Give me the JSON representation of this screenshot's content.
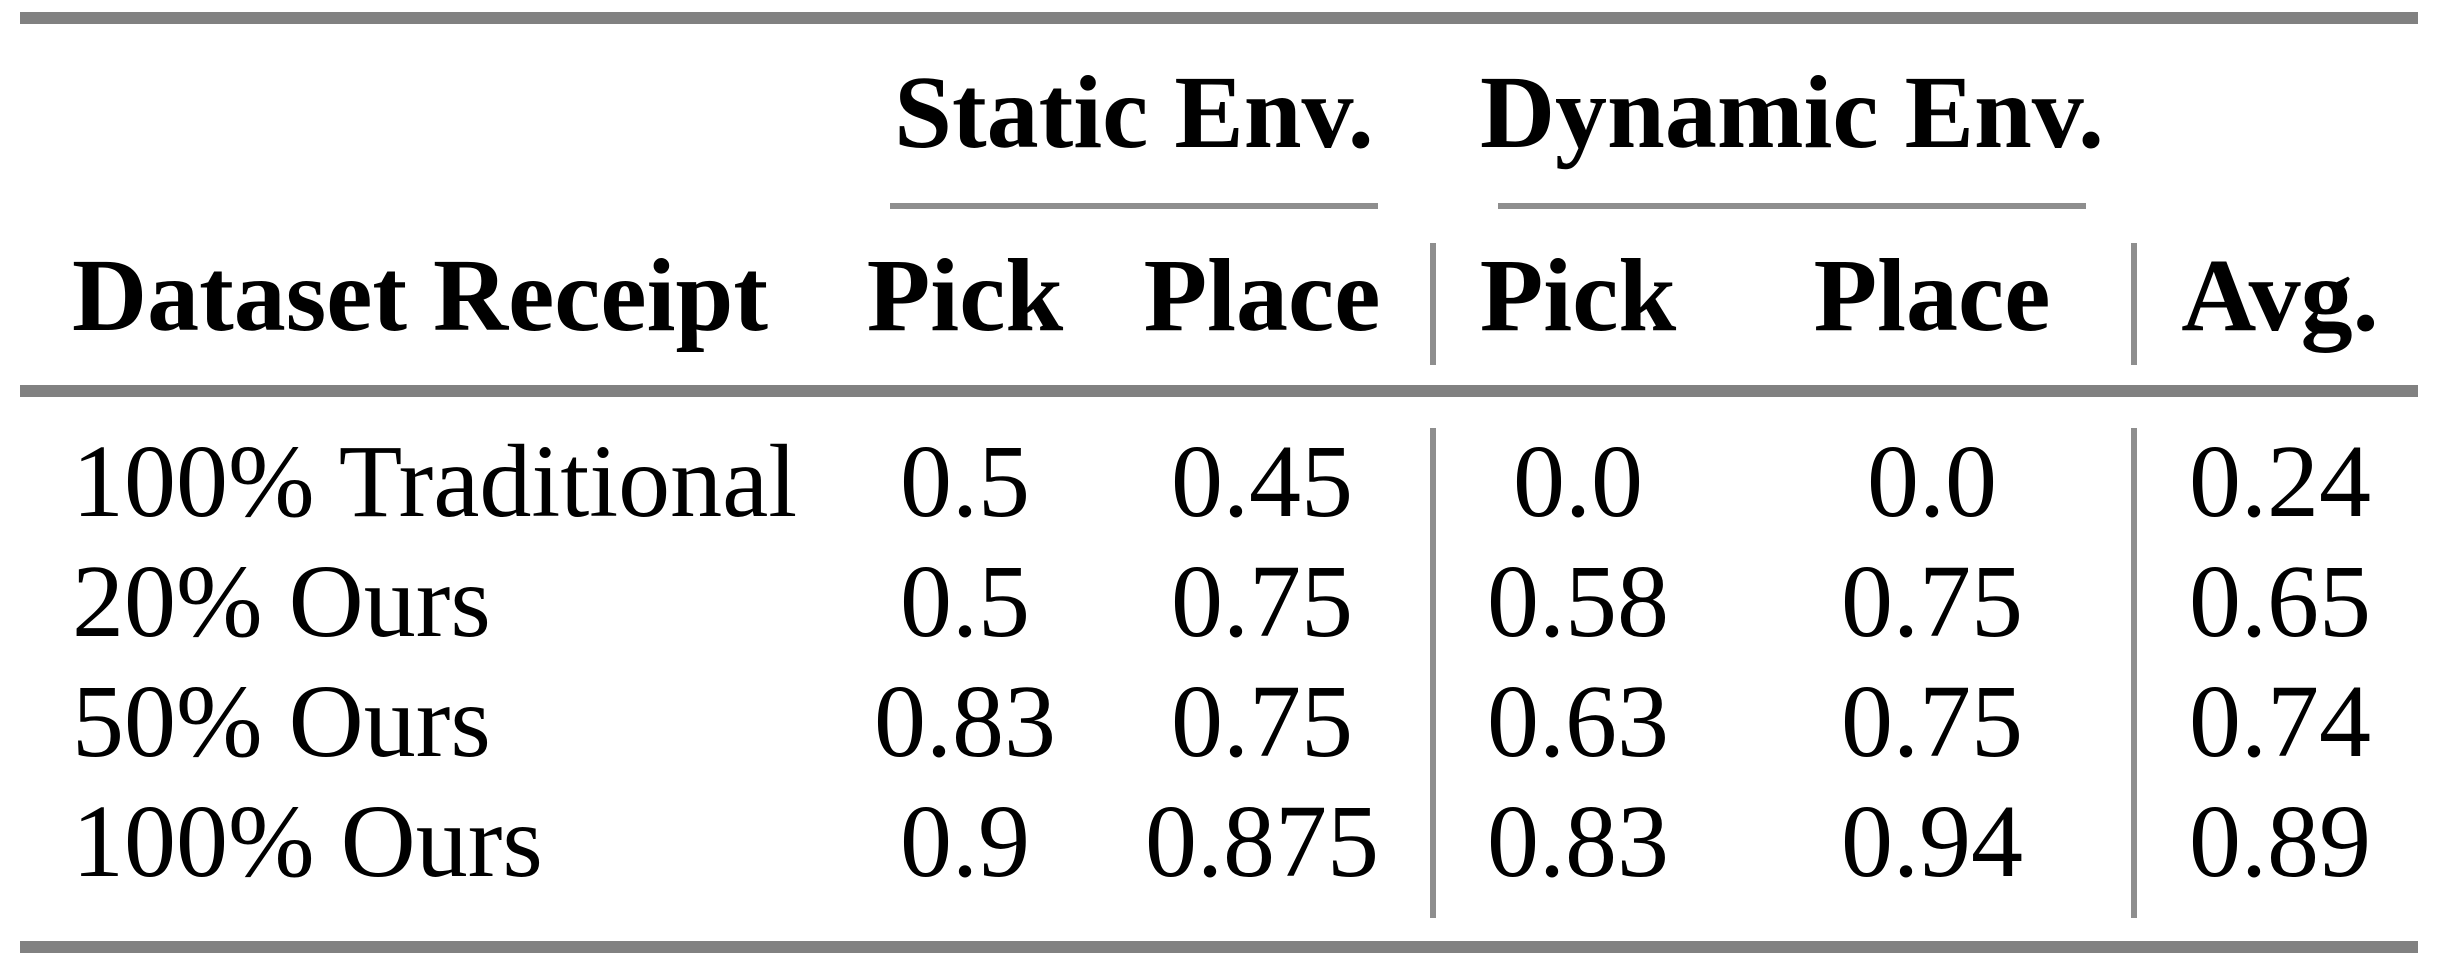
{
  "table": {
    "groups": [
      {
        "label": "Static Env."
      },
      {
        "label": "Dynamic Env."
      }
    ],
    "headers": {
      "dataset": "Dataset Receipt",
      "static_pick": "Pick",
      "static_place": "Place",
      "dynamic_pick": "Pick",
      "dynamic_place": "Place",
      "avg": "Avg."
    },
    "rows": [
      {
        "label": "100% Traditional",
        "values": [
          "0.5",
          "0.45",
          "0.0",
          "0.0",
          "0.24"
        ]
      },
      {
        "label": "20% Ours",
        "values": [
          "0.5",
          "0.75",
          "0.58",
          "0.75",
          "0.65"
        ]
      },
      {
        "label": "50% Ours",
        "values": [
          "0.83",
          "0.75",
          "0.63",
          "0.75",
          "0.74"
        ]
      },
      {
        "label": "100% Ours",
        "values": [
          "0.9",
          "0.875",
          "0.83",
          "0.94",
          "0.89"
        ]
      }
    ]
  },
  "chart_data": {
    "type": "table",
    "column_groups": [
      "Static Env.",
      "Dynamic Env."
    ],
    "columns": [
      "Dataset Receipt",
      "Static Env. Pick",
      "Static Env. Place",
      "Dynamic Env. Pick",
      "Dynamic Env. Place",
      "Avg."
    ],
    "rows": [
      [
        "100% Traditional",
        0.5,
        0.45,
        0.0,
        0.0,
        0.24
      ],
      [
        "20% Ours",
        0.5,
        0.75,
        0.58,
        0.75,
        0.65
      ],
      [
        "50% Ours",
        0.83,
        0.75,
        0.63,
        0.75,
        0.74
      ],
      [
        "100% Ours",
        0.9,
        0.875,
        0.83,
        0.94,
        0.89
      ]
    ]
  },
  "colors": {
    "rule_thick": "#818181",
    "rule_thin": "#8e8e8e",
    "text": "#000000",
    "background": "#ffffff"
  }
}
